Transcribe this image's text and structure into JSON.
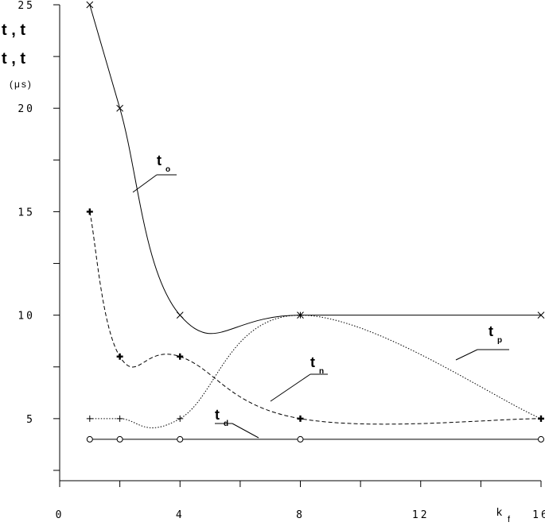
{
  "chart_data": {
    "type": "line",
    "xlabel": "k",
    "xlabel_sub": "f",
    "ylabel_lines": [
      "t  , t",
      "t  , t"
    ],
    "ylabel_unit": "(μs)",
    "xlim": [
      0,
      16
    ],
    "ylim": [
      2,
      25
    ],
    "x_ticks": [
      0,
      4,
      8,
      12,
      16
    ],
    "y_ticks": [
      5,
      10,
      15,
      20,
      25
    ],
    "x_tick_labels": [
      "0",
      "4",
      "8",
      "12",
      "16"
    ],
    "y_tick_labels": [
      "5",
      "10",
      "15",
      "20",
      "25"
    ],
    "grid": false,
    "series": [
      {
        "name": "t",
        "sub": "o",
        "marker": "x",
        "line": "solid",
        "x": [
          1,
          2,
          4,
          8,
          16
        ],
        "y": [
          25,
          20,
          10,
          10,
          10
        ]
      },
      {
        "name": "t",
        "sub": "n",
        "marker": "plus-bold",
        "line": "dashed",
        "x": [
          1,
          2,
          4,
          8,
          16
        ],
        "y": [
          15,
          8,
          8,
          5,
          5
        ]
      },
      {
        "name": "t",
        "sub": "p",
        "marker": "plus",
        "line": "dotted",
        "x": [
          1,
          2,
          4,
          8,
          16
        ],
        "y": [
          5,
          5,
          5,
          10,
          5
        ]
      },
      {
        "name": "t",
        "sub": "d",
        "marker": "circle",
        "line": "solid",
        "x": [
          1,
          2,
          4,
          8,
          16
        ],
        "y": [
          4,
          4,
          4,
          4,
          4
        ]
      }
    ]
  }
}
